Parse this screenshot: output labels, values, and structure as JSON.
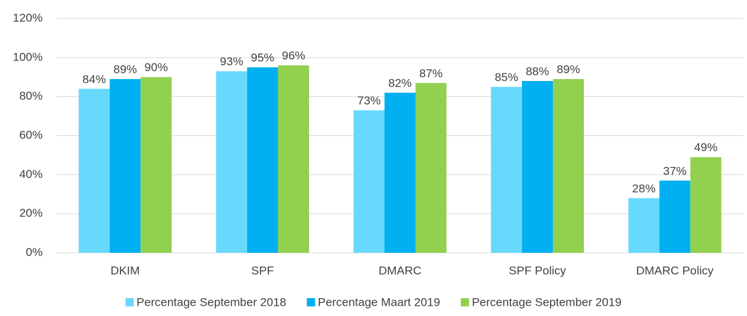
{
  "chart_data": {
    "type": "bar",
    "categories": [
      "DKIM",
      "SPF",
      "DMARC",
      "SPF Policy",
      "DMARC Policy"
    ],
    "series": [
      {
        "name": "Percentage September 2018",
        "color": "#66d9fc",
        "values": [
          84,
          93,
          73,
          85,
          28
        ],
        "value_labels": [
          "84%",
          "93%",
          "73%",
          "85%",
          "28%"
        ]
      },
      {
        "name": "Percentage Maart 2019",
        "color": "#00b0f0",
        "values": [
          89,
          95,
          82,
          88,
          37
        ],
        "value_labels": [
          "89%",
          "95%",
          "82%",
          "88%",
          "37%"
        ]
      },
      {
        "name": "Percentage September 2019",
        "color": "#92d050",
        "values": [
          90,
          96,
          87,
          89,
          49
        ],
        "value_labels": [
          "90%",
          "96%",
          "87%",
          "89%",
          "49%"
        ]
      }
    ],
    "ylim": [
      0,
      120
    ],
    "yticks": [
      {
        "value": 0,
        "label": "0%"
      },
      {
        "value": 20,
        "label": "20%"
      },
      {
        "value": 40,
        "label": "40%"
      },
      {
        "value": 60,
        "label": "60%"
      },
      {
        "value": 80,
        "label": "80%"
      },
      {
        "value": 100,
        "label": "100%"
      },
      {
        "value": 120,
        "label": "120%"
      }
    ],
    "grid": true,
    "legend": "bottom"
  }
}
